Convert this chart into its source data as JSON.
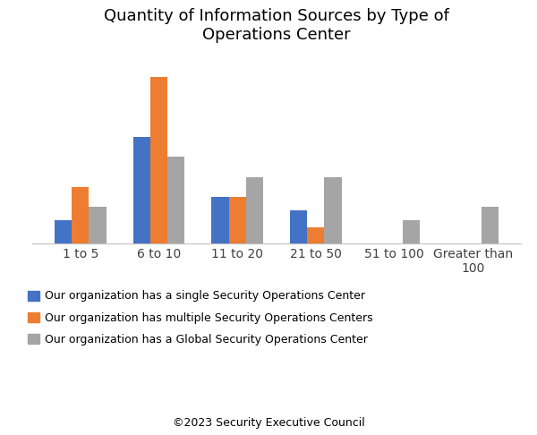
{
  "title": "Quantity of Information Sources by Type of\nOperations Center",
  "categories": [
    "1 to 5",
    "6 to 10",
    "11 to 20",
    "21 to 50",
    "51 to 100",
    "Greater than\n100"
  ],
  "series": {
    "single": {
      "label": "Our organization has a single Security Operations Center",
      "color": "#4472C4",
      "values": [
        7,
        32,
        14,
        10,
        0,
        0
      ]
    },
    "multiple": {
      "label": "Our organization has multiple Security Operations Centers",
      "color": "#ED7D31",
      "values": [
        17,
        50,
        14,
        5,
        0,
        0
      ]
    },
    "global": {
      "label": "Our organization has a Global Security Operations Center",
      "color": "#A5A5A5",
      "values": [
        11,
        26,
        20,
        20,
        7,
        11
      ]
    }
  },
  "ylim": [
    0,
    56
  ],
  "background_color": "#FFFFFF",
  "grid_color": "#D9D9D9",
  "footer": "©2023 Security Executive Council",
  "title_fontsize": 13,
  "legend_fontsize": 9,
  "tick_fontsize": 10,
  "footer_fontsize": 9,
  "bar_width": 0.22
}
